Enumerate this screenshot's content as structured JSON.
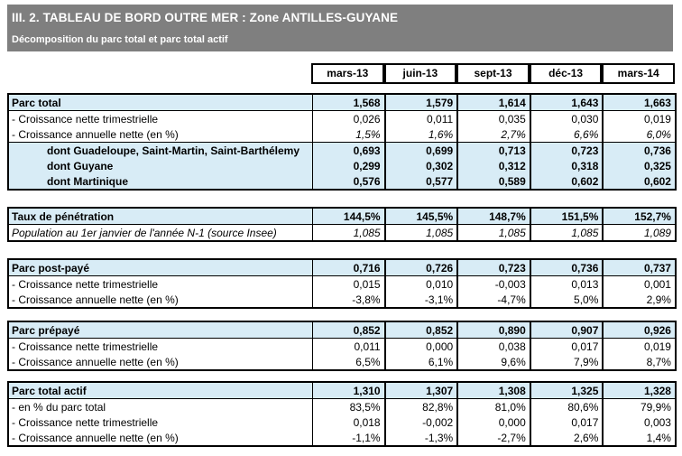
{
  "header": {
    "title": "III. 2. TABLEAU DE BORD OUTRE MER : Zone ANTILLES-GUYANE",
    "subtitle": "Décomposition du parc total et parc total actif"
  },
  "columns": [
    "mars-13",
    "juin-13",
    "sept-13",
    "déc-13",
    "mars-14"
  ],
  "blocks": [
    {
      "name": "parc-total",
      "rows": [
        {
          "label": "Parc total",
          "variant": "primary",
          "rule": true,
          "values": [
            "1,568",
            "1,579",
            "1,614",
            "1,643",
            "1,663"
          ]
        },
        {
          "label": "- Croissance nette trimestrielle",
          "variant": "sub",
          "rule": false,
          "values": [
            "0,026",
            "0,011",
            "0,035",
            "0,030",
            "0,019"
          ]
        },
        {
          "label": "- Croissance annuelle nette (en %)",
          "variant": "italic-values",
          "rule": true,
          "values": [
            "1,5%",
            "1,6%",
            "2,7%",
            "6,6%",
            "6,0%"
          ]
        },
        {
          "label": "dont Guadeloupe, Saint-Martin, Saint-Barthélemy",
          "variant": "dont",
          "rule": false,
          "values": [
            "0,693",
            "0,699",
            "0,713",
            "0,723",
            "0,736"
          ]
        },
        {
          "label": "dont Guyane",
          "variant": "dont",
          "rule": false,
          "values": [
            "0,299",
            "0,302",
            "0,312",
            "0,318",
            "0,325"
          ]
        },
        {
          "label": "dont Martinique",
          "variant": "dont",
          "rule": false,
          "values": [
            "0,576",
            "0,577",
            "0,589",
            "0,602",
            "0,602"
          ]
        }
      ]
    },
    {
      "name": "taux-de-penetration",
      "rows": [
        {
          "label": "Taux de pénétration",
          "variant": "primary",
          "rule": true,
          "values": [
            "144,5%",
            "145,5%",
            "148,7%",
            "151,5%",
            "152,7%"
          ]
        },
        {
          "label": "Population au 1er janvier de l'année N-1 (source Insee)",
          "variant": "italic-row",
          "rule": false,
          "values": [
            "1,085",
            "1,085",
            "1,085",
            "1,085",
            "1,089"
          ]
        }
      ]
    },
    {
      "name": "parc-post-paye",
      "rows": [
        {
          "label": "Parc post-payé",
          "variant": "primary",
          "rule": true,
          "values": [
            "0,716",
            "0,726",
            "0,723",
            "0,736",
            "0,737"
          ]
        },
        {
          "label": "- Croissance nette trimestrielle",
          "variant": "sub",
          "rule": false,
          "values": [
            "0,015",
            "0,010",
            "-0,003",
            "0,013",
            "0,001"
          ]
        },
        {
          "label": "- Croissance annuelle nette (en %)",
          "variant": "sub",
          "rule": false,
          "values": [
            "-3,8%",
            "-3,1%",
            "-4,7%",
            "5,0%",
            "2,9%"
          ]
        }
      ]
    },
    {
      "name": "parc-prepaye",
      "rows": [
        {
          "label": "Parc prépayé",
          "variant": "primary",
          "rule": true,
          "values": [
            "0,852",
            "0,852",
            "0,890",
            "0,907",
            "0,926"
          ]
        },
        {
          "label": "- Croissance nette trimestrielle",
          "variant": "sub",
          "rule": false,
          "values": [
            "0,011",
            "0,000",
            "0,038",
            "0,017",
            "0,019"
          ]
        },
        {
          "label": "- Croissance annuelle nette (en %)",
          "variant": "sub",
          "rule": false,
          "values": [
            "6,5%",
            "6,1%",
            "9,6%",
            "7,9%",
            "8,7%"
          ]
        }
      ]
    },
    {
      "name": "parc-total-actif",
      "rows": [
        {
          "label": "Parc total actif",
          "variant": "primary",
          "rule": true,
          "values": [
            "1,310",
            "1,307",
            "1,308",
            "1,325",
            "1,328"
          ]
        },
        {
          "label": "- en % du parc total",
          "variant": "sub",
          "rule": false,
          "values": [
            "83,5%",
            "82,8%",
            "81,0%",
            "80,6%",
            "79,9%"
          ]
        },
        {
          "label": "- Croissance nette trimestrielle",
          "variant": "sub",
          "rule": false,
          "values": [
            "0,018",
            "-0,002",
            "0,000",
            "0,017",
            "0,003"
          ]
        },
        {
          "label": "- Croissance annuelle nette (en %)",
          "variant": "sub",
          "rule": false,
          "values": [
            "-1,1%",
            "-1,3%",
            "-2,7%",
            "2,6%",
            "1,4%"
          ]
        }
      ]
    }
  ],
  "colors": {
    "band_background": "#7f7f7f",
    "row_highlight": "#d8ecf6",
    "border": "#000000",
    "band_text": "#ffffff"
  }
}
